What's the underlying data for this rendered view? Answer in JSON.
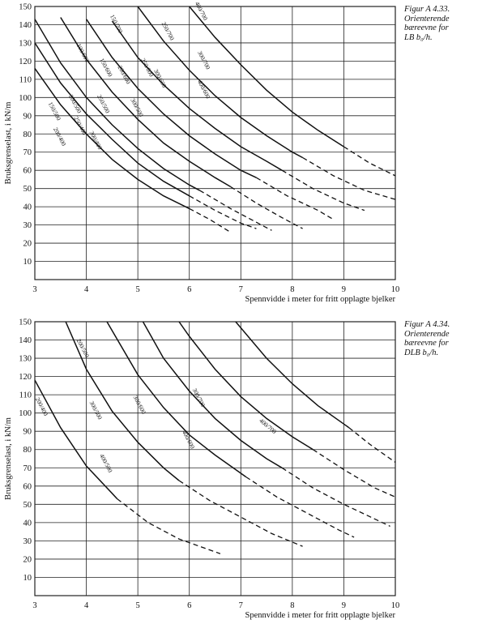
{
  "captions": [
    {
      "lines": [
        "Figur A 4.33.",
        "Orienterende",
        "bæreevne for",
        "LB b₀/h."
      ]
    },
    {
      "lines": [
        "Figur A 4.34.",
        "Orienterende",
        "bæreevne for",
        "DLB b₀/h."
      ]
    }
  ],
  "colors": {
    "line": "#111111",
    "grid": "#222222"
  },
  "chart_data": [
    {
      "type": "line",
      "xlabel": "Spennvidde i meter for fritt opplagte bjelker",
      "ylabel": "Bruksgrenselast, i kN/m",
      "xlim": [
        3,
        10
      ],
      "ylim": [
        0,
        150
      ],
      "xticks": [
        3,
        4,
        5,
        6,
        7,
        8,
        9,
        10
      ],
      "yticks": [
        10,
        20,
        30,
        40,
        50,
        60,
        70,
        80,
        90,
        100,
        110,
        120,
        130,
        140,
        150
      ],
      "grid": true,
      "series": [
        {
          "name": "150/500",
          "solid": [
            [
              3.0,
              116
            ],
            [
              3.5,
              96
            ],
            [
              4.0,
              80
            ],
            [
              4.5,
              66
            ],
            [
              5.0,
              55
            ],
            [
              5.5,
              46
            ],
            [
              6.0,
              39
            ]
          ],
          "dashed": [
            [
              6.0,
              39
            ],
            [
              6.4,
              33
            ],
            [
              6.8,
              26
            ]
          ]
        },
        {
          "name": "200/500",
          "solid": [
            [
              3.0,
              130
            ],
            [
              3.5,
              108
            ],
            [
              4.0,
              91
            ],
            [
              4.5,
              77
            ],
            [
              5.0,
              64
            ],
            [
              5.5,
              54
            ],
            [
              6.0,
              46
            ]
          ],
          "dashed": [
            [
              6.0,
              46
            ],
            [
              6.5,
              38
            ],
            [
              7.0,
              31
            ],
            [
              7.3,
              28
            ]
          ]
        },
        {
          "name": "250/500",
          "solid": [
            [
              3.0,
              143
            ],
            [
              3.5,
              119
            ],
            [
              4.0,
              100
            ],
            [
              4.5,
              85
            ],
            [
              5.0,
              72
            ],
            [
              5.5,
              61
            ],
            [
              6.0,
              52
            ],
            [
              6.2,
              49
            ]
          ],
          "dashed": [
            [
              6.2,
              49
            ],
            [
              6.8,
              39
            ],
            [
              7.4,
              30
            ],
            [
              7.6,
              27
            ]
          ]
        },
        {
          "name": "100/600",
          "solid": [
            [
              3.5,
              144
            ],
            [
              4.0,
              121
            ],
            [
              4.5,
              103
            ],
            [
              5.0,
              88
            ],
            [
              5.5,
              75
            ],
            [
              6.0,
              65
            ],
            [
              6.5,
              56
            ],
            [
              6.8,
              51
            ]
          ],
          "dashed": [
            [
              6.8,
              51
            ],
            [
              7.3,
              42
            ],
            [
              7.8,
              34
            ],
            [
              8.2,
              28
            ]
          ]
        },
        {
          "name": "150/600",
          "solid": [
            [
              4.0,
              143
            ],
            [
              4.5,
              122
            ],
            [
              5.0,
              105
            ],
            [
              5.5,
              91
            ],
            [
              6.0,
              79
            ],
            [
              6.5,
              69
            ],
            [
              7.0,
              60
            ],
            [
              7.3,
              56
            ]
          ],
          "dashed": [
            [
              7.3,
              56
            ],
            [
              7.9,
              46
            ],
            [
              8.5,
              38
            ],
            [
              8.8,
              33
            ]
          ]
        },
        {
          "name": "200/600",
          "solid": [
            [
              4.5,
              142
            ],
            [
              5.0,
              122
            ],
            [
              5.5,
              107
            ],
            [
              6.0,
              94
            ],
            [
              6.5,
              83
            ],
            [
              7.0,
              73
            ],
            [
              7.5,
              65
            ],
            [
              7.8,
              60
            ]
          ],
          "dashed": [
            [
              7.8,
              60
            ],
            [
              8.4,
              50
            ],
            [
              9.0,
              42
            ],
            [
              9.4,
              38
            ]
          ]
        },
        {
          "name": "250/700",
          "solid": [
            [
              5.0,
              150
            ],
            [
              5.5,
              131
            ],
            [
              6.0,
              115
            ],
            [
              6.5,
              101
            ],
            [
              7.0,
              89
            ],
            [
              7.5,
              79
            ],
            [
              8.0,
              70
            ],
            [
              8.2,
              67
            ]
          ],
          "dashed": [
            [
              8.2,
              67
            ],
            [
              8.8,
              57
            ],
            [
              9.4,
              49
            ],
            [
              10.0,
              44
            ]
          ]
        },
        {
          "name": "400/700",
          "solid": [
            [
              6.0,
              150
            ],
            [
              6.5,
              133
            ],
            [
              7.0,
              118
            ],
            [
              7.5,
              104
            ],
            [
              8.0,
              92
            ],
            [
              8.5,
              82
            ],
            [
              9.0,
              73
            ]
          ],
          "dashed": [
            [
              9.0,
              73
            ],
            [
              9.5,
              64
            ],
            [
              10.0,
              57
            ]
          ]
        }
      ],
      "curve_labels": [
        "150/500",
        "200/500",
        "250/500",
        "300/500",
        "200/400",
        "250/400",
        "300/400",
        "100/600",
        "150/600",
        "200/600",
        "250/600",
        "300/600",
        "400/600",
        "150/700",
        "250/700",
        "300/700",
        "400/700"
      ]
    },
    {
      "type": "line",
      "xlabel": "Spennvidde i meter for fritt opplagte bjelker",
      "ylabel": "Bruksgrenselast, i kN/m",
      "xlim": [
        3,
        10
      ],
      "ylim": [
        0,
        150
      ],
      "xticks": [
        3,
        4,
        5,
        6,
        7,
        8,
        9,
        10
      ],
      "yticks": [
        10,
        20,
        30,
        40,
        50,
        60,
        70,
        80,
        90,
        100,
        110,
        120,
        130,
        140,
        150
      ],
      "grid": true,
      "series": [
        {
          "name": "200/400",
          "solid": [
            [
              3.0,
              118
            ],
            [
              3.5,
              92
            ],
            [
              4.0,
              71
            ],
            [
              4.5,
              56
            ],
            [
              4.6,
              53
            ]
          ],
          "dashed": [
            [
              4.6,
              53
            ],
            [
              5.2,
              40
            ],
            [
              5.8,
              31
            ],
            [
              6.2,
              27
            ],
            [
              6.6,
              23
            ]
          ]
        },
        {
          "name": "200/500",
          "solid": [
            [
              3.6,
              150
            ],
            [
              4.0,
              124
            ],
            [
              4.5,
              101
            ],
            [
              5.0,
              84
            ],
            [
              5.5,
              70
            ],
            [
              5.8,
              63
            ]
          ],
          "dashed": [
            [
              5.8,
              63
            ],
            [
              6.4,
              52
            ],
            [
              7.0,
              43
            ],
            [
              7.6,
              34
            ],
            [
              8.2,
              27
            ]
          ]
        },
        {
          "name": "300/500",
          "solid": [
            [
              4.4,
              150
            ],
            [
              5.0,
              121
            ],
            [
              5.5,
              103
            ],
            [
              6.0,
              88
            ],
            [
              6.5,
              77
            ],
            [
              7.0,
              67
            ],
            [
              7.1,
              65
            ]
          ],
          "dashed": [
            [
              7.1,
              65
            ],
            [
              7.7,
              54
            ],
            [
              8.3,
              45
            ],
            [
              8.9,
              36
            ],
            [
              9.2,
              32
            ]
          ]
        },
        {
          "name": "300/600",
          "solid": [
            [
              5.1,
              150
            ],
            [
              5.5,
              130
            ],
            [
              6.0,
              112
            ],
            [
              6.5,
              97
            ],
            [
              7.0,
              85
            ],
            [
              7.5,
              75
            ],
            [
              7.8,
              70
            ]
          ],
          "dashed": [
            [
              7.8,
              70
            ],
            [
              8.4,
              59
            ],
            [
              9.0,
              50
            ],
            [
              9.6,
              42
            ],
            [
              9.9,
              38
            ]
          ]
        },
        {
          "name": "400/600",
          "solid": [
            [
              5.8,
              150
            ],
            [
              6.0,
              142
            ],
            [
              6.5,
              124
            ],
            [
              7.0,
              109
            ],
            [
              7.5,
              97
            ],
            [
              8.0,
              87
            ],
            [
              8.4,
              80
            ]
          ],
          "dashed": [
            [
              8.4,
              80
            ],
            [
              9.0,
              69
            ],
            [
              9.6,
              59
            ],
            [
              10.0,
              54
            ]
          ]
        },
        {
          "name": "400/700",
          "solid": [
            [
              6.9,
              150
            ],
            [
              7.5,
              130
            ],
            [
              8.0,
              116
            ],
            [
              8.5,
              104
            ],
            [
              9.0,
              94
            ],
            [
              9.1,
              92
            ]
          ],
          "dashed": [
            [
              9.1,
              92
            ],
            [
              9.5,
              83
            ],
            [
              10.0,
              73
            ]
          ]
        }
      ],
      "curve_labels": [
        "200/400",
        "200/500",
        "300/500",
        "300/600",
        "400/500",
        "400/600",
        "300/700",
        "400/700"
      ]
    }
  ]
}
